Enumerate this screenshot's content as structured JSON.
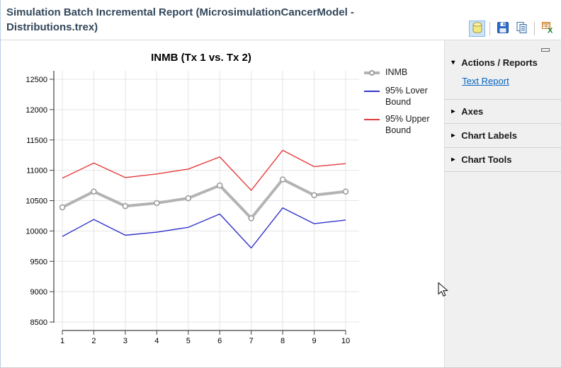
{
  "header": {
    "title": "Simulation Batch Incremental Report (MicrosimulationCancerModel - Distributions.trex)",
    "toolbar": [
      {
        "icon": "database-icon",
        "active": true
      },
      {
        "icon": "save-icon",
        "active": false
      },
      {
        "icon": "copy-icon",
        "active": false
      },
      {
        "icon": "export-excel-icon",
        "active": false
      }
    ]
  },
  "sidebar": {
    "sections": [
      {
        "label": "Actions / Reports",
        "expanded": true,
        "links": [
          "Text Report"
        ]
      },
      {
        "label": "Axes",
        "expanded": false,
        "links": []
      },
      {
        "label": "Chart Labels",
        "expanded": false,
        "links": []
      },
      {
        "label": "Chart Tools",
        "expanded": false,
        "links": []
      }
    ]
  },
  "chart_data": {
    "type": "line",
    "title": "INMB (Tx 1 vs. Tx 2)",
    "xlabel": "",
    "ylabel": "",
    "x": [
      1,
      2,
      3,
      4,
      5,
      6,
      7,
      8,
      9,
      10
    ],
    "ylim": [
      8500,
      12500
    ],
    "ytick_step": 500,
    "grid": true,
    "legend_position": "right",
    "series": [
      {
        "name": "INMB",
        "color": "#b3b3b3",
        "width": 4,
        "marker": "circle",
        "values": [
          10390,
          10650,
          10410,
          10460,
          10540,
          10750,
          10210,
          10850,
          10590,
          10650
        ]
      },
      {
        "name": "95% Lover Bound",
        "color": "#3333cc",
        "width": 1.4,
        "marker": null,
        "values": [
          9910,
          10190,
          9930,
          9980,
          10060,
          10280,
          9720,
          10380,
          10120,
          10180
        ]
      },
      {
        "name": "95% Upper Bound",
        "color": "#e53b3b",
        "width": 1.4,
        "marker": null,
        "values": [
          10870,
          11120,
          10880,
          10940,
          11020,
          11220,
          10670,
          11330,
          11060,
          11110
        ]
      }
    ]
  }
}
